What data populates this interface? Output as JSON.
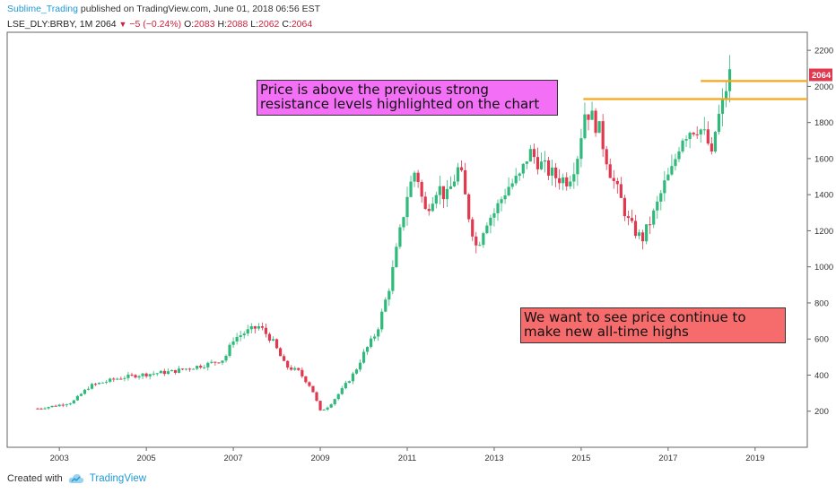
{
  "header": {
    "author": "Sublime_Trading",
    "published": "published on TradingView.com, June 01, 2018 06:56 EST"
  },
  "ticker": {
    "symbol": "LSE_DLY:BRBY, 1M",
    "last": "2064",
    "change": "−5 (−0.24%)",
    "o_label": "O:",
    "o": "2083",
    "h_label": "H:",
    "h": "2088",
    "l_label": "L:",
    "l": "2062",
    "c_label": "C:",
    "c": "2064"
  },
  "annotations": {
    "resistance_note": "Price is above the previous strong resistance levels highlighted on the chart",
    "target_note": "We want to see price continue to make new all-time highs"
  },
  "footer": {
    "created_with": "Created with",
    "brand": "TradingView"
  },
  "colors": {
    "up": "#2fb97b",
    "down": "#e0384f",
    "resistance": "#f7a61b",
    "price_badge": "#e0384f"
  },
  "chart_data": {
    "type": "candlestick",
    "interval": "1M",
    "x_ticks": [
      "2003",
      "2005",
      "2007",
      "2009",
      "2011",
      "2013",
      "2015",
      "2017",
      "2019"
    ],
    "y_ticks": [
      200,
      400,
      600,
      800,
      1000,
      1200,
      1400,
      1600,
      1800,
      2000,
      2200
    ],
    "y_range": [
      0,
      2300
    ],
    "x_range": [
      2001.8,
      2020.2
    ],
    "last_price_label": "2064",
    "resistance_levels": [
      {
        "price": 1930,
        "from": 2015.05,
        "to": 2020.2
      },
      {
        "price": 2030,
        "from": 2017.75,
        "to": 2020.2
      }
    ],
    "price_path": [
      [
        2002.5,
        215
      ],
      [
        2002.9,
        230
      ],
      [
        2003.3,
        250
      ],
      [
        2003.7,
        340
      ],
      [
        2004.0,
        360
      ],
      [
        2004.4,
        385
      ],
      [
        2004.8,
        400
      ],
      [
        2005.2,
        410
      ],
      [
        2005.6,
        420
      ],
      [
        2006.0,
        440
      ],
      [
        2006.4,
        460
      ],
      [
        2006.8,
        490
      ],
      [
        2007.0,
        600
      ],
      [
        2007.3,
        640
      ],
      [
        2007.6,
        670
      ],
      [
        2007.9,
        590
      ],
      [
        2008.2,
        450
      ],
      [
        2008.5,
        420
      ],
      [
        2008.8,
        330
      ],
      [
        2009.0,
        200
      ],
      [
        2009.2,
        230
      ],
      [
        2009.5,
        320
      ],
      [
        2009.8,
        420
      ],
      [
        2010.0,
        520
      ],
      [
        2010.3,
        640
      ],
      [
        2010.6,
        900
      ],
      [
        2010.8,
        1150
      ],
      [
        2011.0,
        1400
      ],
      [
        2011.2,
        1550
      ],
      [
        2011.4,
        1300
      ],
      [
        2011.7,
        1450
      ],
      [
        2011.9,
        1380
      ],
      [
        2012.2,
        1560
      ],
      [
        2012.4,
        1300
      ],
      [
        2012.6,
        1100
      ],
      [
        2012.8,
        1250
      ],
      [
        2013.0,
        1300
      ],
      [
        2013.3,
        1440
      ],
      [
        2013.6,
        1500
      ],
      [
        2013.8,
        1640
      ],
      [
        2014.1,
        1560
      ],
      [
        2014.4,
        1500
      ],
      [
        2014.7,
        1480
      ],
      [
        2014.9,
        1600
      ],
      [
        2015.1,
        1880
      ],
      [
        2015.4,
        1770
      ],
      [
        2015.7,
        1500
      ],
      [
        2015.9,
        1380
      ],
      [
        2016.1,
        1240
      ],
      [
        2016.4,
        1150
      ],
      [
        2016.7,
        1310
      ],
      [
        2016.9,
        1450
      ],
      [
        2017.1,
        1540
      ],
      [
        2017.3,
        1720
      ],
      [
        2017.5,
        1760
      ],
      [
        2017.7,
        1780
      ],
      [
        2017.9,
        1700
      ],
      [
        2018.0,
        1600
      ],
      [
        2018.1,
        1780
      ],
      [
        2018.25,
        1900
      ],
      [
        2018.4,
        2064
      ]
    ]
  }
}
